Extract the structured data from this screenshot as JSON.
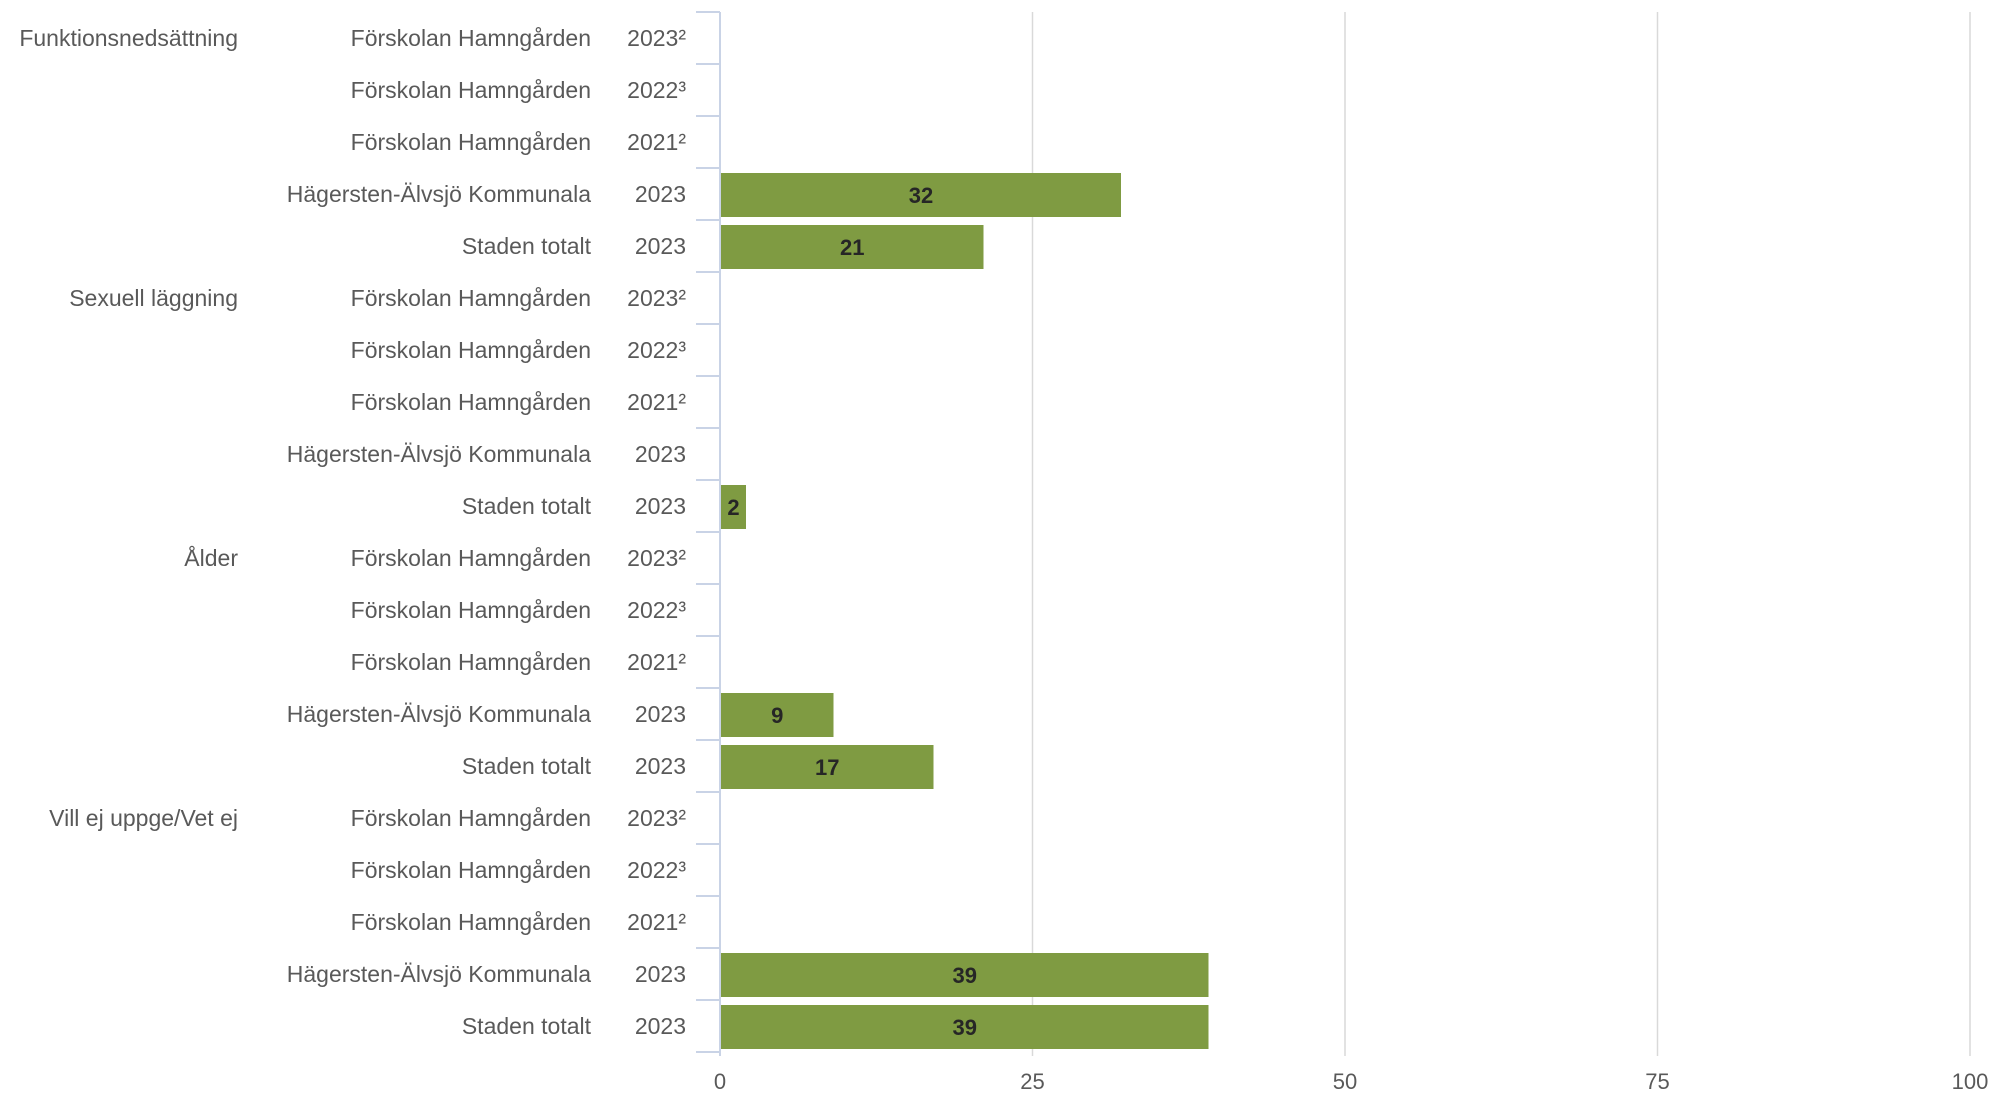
{
  "chart_data": {
    "type": "bar",
    "orientation": "horizontal",
    "title": "",
    "xlabel": "",
    "ylabel": "",
    "xlim": [
      0,
      100
    ],
    "x_ticks": [
      0,
      25,
      50,
      75,
      100
    ],
    "grid": "vertical",
    "legend": "none",
    "bar_color": "#7F9B42",
    "groups": [
      {
        "label": "Funktionsnedsättning",
        "rows": [
          {
            "entity": "Förskolan Hamngården",
            "year": "2023²",
            "value": null
          },
          {
            "entity": "Förskolan Hamngården",
            "year": "2022³",
            "value": null
          },
          {
            "entity": "Förskolan Hamngården",
            "year": "2021²",
            "value": null
          },
          {
            "entity": "Hägersten-Älvsjö Kommunala",
            "year": "2023",
            "value": 32
          },
          {
            "entity": "Staden totalt",
            "year": "2023",
            "value": 21
          }
        ]
      },
      {
        "label": "Sexuell läggning",
        "rows": [
          {
            "entity": "Förskolan Hamngården",
            "year": "2023²",
            "value": null
          },
          {
            "entity": "Förskolan Hamngården",
            "year": "2022³",
            "value": null
          },
          {
            "entity": "Förskolan Hamngården",
            "year": "2021²",
            "value": null
          },
          {
            "entity": "Hägersten-Älvsjö Kommunala",
            "year": "2023",
            "value": null
          },
          {
            "entity": "Staden totalt",
            "year": "2023",
            "value": 2
          }
        ]
      },
      {
        "label": "Ålder",
        "rows": [
          {
            "entity": "Förskolan Hamngården",
            "year": "2023²",
            "value": null
          },
          {
            "entity": "Förskolan Hamngården",
            "year": "2022³",
            "value": null
          },
          {
            "entity": "Förskolan Hamngården",
            "year": "2021²",
            "value": null
          },
          {
            "entity": "Hägersten-Älvsjö Kommunala",
            "year": "2023",
            "value": 9
          },
          {
            "entity": "Staden totalt",
            "year": "2023",
            "value": 17
          }
        ]
      },
      {
        "label": "Vill ej uppge/Vet ej",
        "rows": [
          {
            "entity": "Förskolan Hamngården",
            "year": "2023²",
            "value": null
          },
          {
            "entity": "Förskolan Hamngården",
            "year": "2022³",
            "value": null
          },
          {
            "entity": "Förskolan Hamngården",
            "year": "2021²",
            "value": null
          },
          {
            "entity": "Hägersten-Älvsjö Kommunala",
            "year": "2023",
            "value": 39
          },
          {
            "entity": "Staden totalt",
            "year": "2023",
            "value": 39
          }
        ]
      }
    ]
  }
}
